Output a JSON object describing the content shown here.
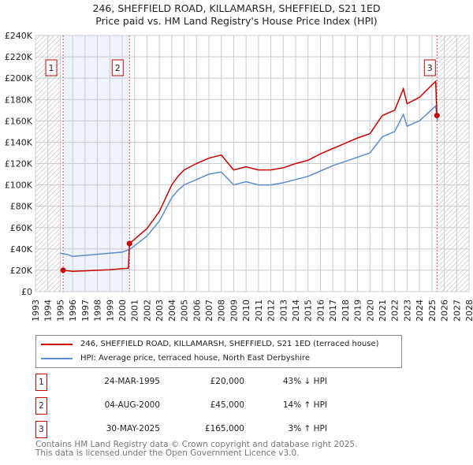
{
  "chart_data": {
    "type": "line",
    "title": "246, SHEFFIELD ROAD, KILLAMARSH, SHEFFIELD, S21 1ED",
    "subtitle": "Price paid vs. HM Land Registry's House Price Index (HPI)",
    "xlim": [
      1993,
      2028
    ],
    "ylim": [
      0,
      240000
    ],
    "x_ticks": [
      "1993",
      "1994",
      "1995",
      "1996",
      "1997",
      "1998",
      "1999",
      "2000",
      "2001",
      "2002",
      "2003",
      "2004",
      "2005",
      "2006",
      "2007",
      "2008",
      "2009",
      "2010",
      "2011",
      "2012",
      "2013",
      "2014",
      "2015",
      "2016",
      "2017",
      "2018",
      "2019",
      "2020",
      "2021",
      "2022",
      "2023",
      "2024",
      "2025",
      "2026",
      "2027",
      "2028"
    ],
    "y_ticks": [
      "£0",
      "£20K",
      "£40K",
      "£60K",
      "£80K",
      "£100K",
      "£120K",
      "£140K",
      "£160K",
      "£180K",
      "£200K",
      "£220K",
      "£240K"
    ],
    "grid": true,
    "series": [
      {
        "name": "246, SHEFFIELD ROAD, KILLAMARSH, SHEFFIELD, S21 1ED (terraced house)",
        "color": "#cc0000",
        "x": [
          1995.23,
          1996,
          1997,
          1998,
          1999,
          2000.5,
          2000.59,
          2001,
          2002,
          2003,
          2004,
          2004.5,
          2005,
          2006,
          2007,
          2008,
          2009,
          2010,
          2011,
          2012,
          2013,
          2014,
          2015,
          2016,
          2017,
          2018,
          2019,
          2020,
          2021,
          2022,
          2022.7,
          2023,
          2024,
          2025.3,
          2025.41
        ],
        "y": [
          20000,
          19000,
          19500,
          20000,
          20500,
          22000,
          45000,
          49000,
          59000,
          75000,
          100000,
          108000,
          114000,
          120000,
          125000,
          128000,
          114000,
          117000,
          114000,
          114000,
          116000,
          120000,
          123000,
          129000,
          134000,
          139000,
          144000,
          148000,
          165000,
          170000,
          190000,
          176000,
          182000,
          197000,
          165000
        ]
      },
      {
        "name": "HPI: Average price, terraced house, North East Derbyshire",
        "color": "#5b8bd0",
        "x": [
          1995,
          1995.5,
          1996,
          1997,
          1998,
          1999,
          2000,
          2000.6,
          2001,
          2002,
          2003,
          2004,
          2004.5,
          2005,
          2006,
          2007,
          2008,
          2009,
          2010,
          2011,
          2012,
          2013,
          2014,
          2015,
          2016,
          2017,
          2018,
          2019,
          2020,
          2021,
          2022,
          2022.7,
          2023,
          2024,
          2025.3,
          2025.45
        ],
        "y": [
          36000,
          35000,
          33000,
          34000,
          35000,
          36000,
          37000,
          39500,
          43000,
          52000,
          66000,
          88000,
          95000,
          100000,
          105000,
          110000,
          112000,
          100000,
          103000,
          100000,
          100000,
          102000,
          105000,
          108000,
          113000,
          118000,
          122000,
          126000,
          130000,
          145000,
          150000,
          166000,
          155000,
          160000,
          174000,
          160000
        ]
      }
    ],
    "sales": [
      {
        "label": "1",
        "x": 1995.23,
        "y": 20000
      },
      {
        "label": "2",
        "x": 2000.59,
        "y": 45000
      },
      {
        "label": "3",
        "x": 2025.41,
        "y": 165000
      }
    ]
  },
  "legend": {
    "red": "246, SHEFFIELD ROAD, KILLAMARSH, SHEFFIELD, S21 1ED (terraced house)",
    "blue": "HPI: Average price, terraced house, North East Derbyshire"
  },
  "transactions": [
    {
      "num": "1",
      "date": "24-MAR-1995",
      "price": "£20,000",
      "hpi": "43% ↓ HPI"
    },
    {
      "num": "2",
      "date": "04-AUG-2000",
      "price": "£45,000",
      "hpi": "14% ↑ HPI"
    },
    {
      "num": "3",
      "date": "30-MAY-2025",
      "price": "£165,000",
      "hpi": "3% ↑ HPI"
    }
  ],
  "footer": {
    "line1": "Contains HM Land Registry data © Crown copyright and database right 2025.",
    "line2": "This data is licensed under the Open Government Licence v3.0."
  }
}
